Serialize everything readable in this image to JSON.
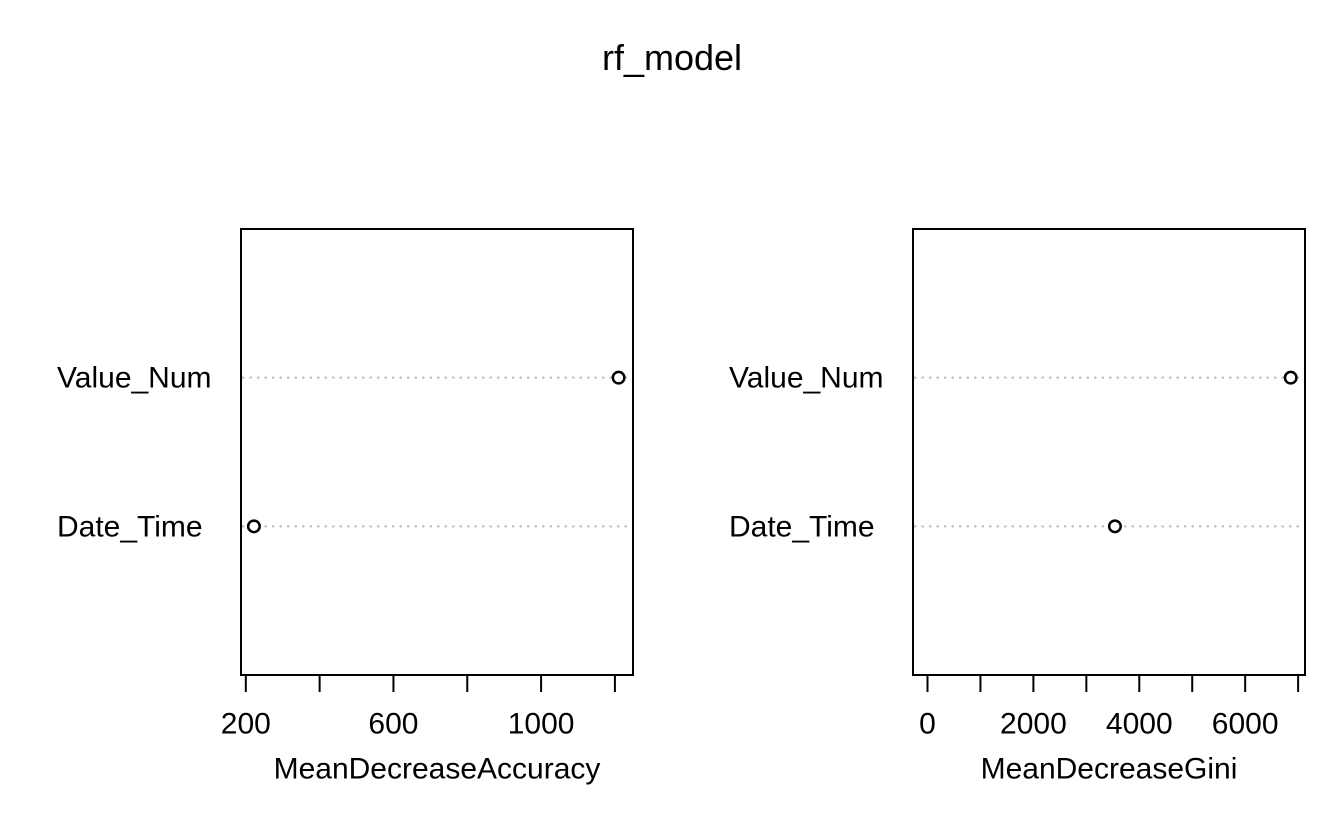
{
  "title": "rf_model",
  "chart_data": [
    {
      "type": "scatter",
      "subtype": "dotchart",
      "title": "",
      "categories": [
        "Value_Num",
        "Date_Time"
      ],
      "values": [
        1210,
        222
      ],
      "xlabel": "MeanDecreaseAccuracy",
      "ylabel": "",
      "xlim": [
        187,
        1249
      ],
      "ylim": [
        0,
        3
      ],
      "xticks": [
        200,
        400,
        600,
        800,
        1000,
        1200
      ],
      "xtick_labels": [
        "200",
        "",
        "600",
        "",
        "1000",
        ""
      ],
      "grid": "dotted-horizontal",
      "legend": "none",
      "point_style": "open-circle"
    },
    {
      "type": "scatter",
      "subtype": "dotchart",
      "title": "",
      "categories": [
        "Value_Num",
        "Date_Time"
      ],
      "values": [
        6860,
        3540
      ],
      "xlabel": "MeanDecreaseGini",
      "ylabel": "",
      "xlim": [
        -274,
        7130
      ],
      "ylim": [
        0,
        3
      ],
      "xticks": [
        0,
        1000,
        2000,
        3000,
        4000,
        5000,
        6000,
        7000
      ],
      "xtick_labels": [
        "0",
        "",
        "2000",
        "",
        "4000",
        "",
        "6000",
        ""
      ],
      "grid": "dotted-horizontal",
      "legend": "none",
      "point_style": "open-circle"
    }
  ],
  "colors": {
    "background": "#ffffff",
    "text": "#000000",
    "axis": "#000000",
    "grid_dotted": "#bebebe",
    "point_stroke": "#000000",
    "point_fill": "#ffffff"
  }
}
